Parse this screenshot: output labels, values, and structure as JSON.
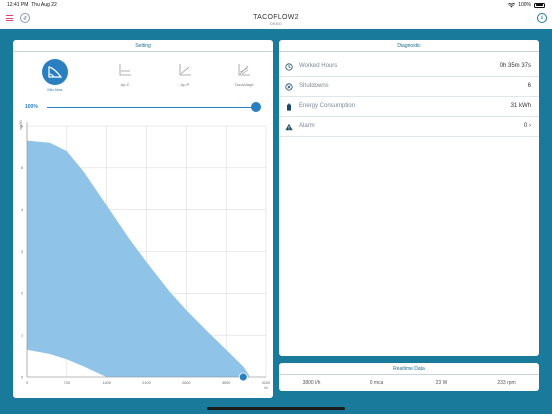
{
  "status": {
    "time": "12:41 PM",
    "date": "Thu Aug 22",
    "battery": "100%"
  },
  "nav": {
    "title": "TACOFLOW2",
    "subtitle": "DEMO"
  },
  "setting": {
    "header": "Setting",
    "modes": [
      {
        "label": "Min-Max",
        "icon": "min-max-icon",
        "active": true
      },
      {
        "label": "Δp-C",
        "icon": "dp-c-icon",
        "active": false
      },
      {
        "label": "Δp-P",
        "icon": "dp-p-icon",
        "active": false
      },
      {
        "label": "TacoAdapt",
        "icon": "tacoadapt-icon",
        "active": false
      }
    ],
    "slider": {
      "label": "100%",
      "value": 1.0
    }
  },
  "chart_data": {
    "type": "area",
    "xlabel": "l/h",
    "ylabel": "mH2O",
    "xlim": [
      0,
      4200
    ],
    "ylim": [
      0,
      6
    ],
    "x_ticks": [
      "0",
      "700",
      "1400",
      "2100",
      "2800",
      "3500",
      "4200"
    ],
    "y_ticks": [
      "0",
      "1",
      "2",
      "3",
      "4",
      "5",
      "6"
    ],
    "series": [
      {
        "x": [
          0,
          400,
          700,
          1000,
          1400,
          1800,
          2100,
          2500,
          2800,
          3200,
          3500,
          3800,
          3900
        ],
        "values": [
          5.65,
          5.6,
          5.4,
          4.9,
          4.1,
          3.3,
          2.75,
          2.05,
          1.6,
          1.05,
          0.65,
          0.25,
          0.05
        ]
      },
      {
        "x": [
          0,
          400,
          700,
          1000,
          1300,
          1400
        ],
        "values": [
          0.65,
          0.55,
          0.42,
          0.25,
          0.06,
          0.0
        ]
      }
    ],
    "operating_point": {
      "x": 3800,
      "y": 0
    },
    "colors": {
      "area": "#8fc4e8",
      "grid": "#d6d6d6",
      "point": "#2a7fc0"
    }
  },
  "diagnostic": {
    "header": "Diagnostic",
    "rows": [
      {
        "label": "Worked Hours",
        "value": "0h 35m 37s",
        "icon": "clock-icon"
      },
      {
        "label": "Shutdowns",
        "value": "6",
        "icon": "shutdown-icon"
      },
      {
        "label": "Energy Consumption",
        "value": "31 kWh",
        "icon": "battery-icon"
      },
      {
        "label": "Alarm",
        "value": "0 ›",
        "icon": "alarm-icon"
      }
    ]
  },
  "realtime": {
    "header": "Realtime Data",
    "values": [
      "3800 l/h",
      "0 mca",
      "23 W",
      "233 rpm"
    ]
  },
  "colors": {
    "accent": "#1a7a9c",
    "blue": "#2a7fc0",
    "menu": "#e0417a"
  }
}
